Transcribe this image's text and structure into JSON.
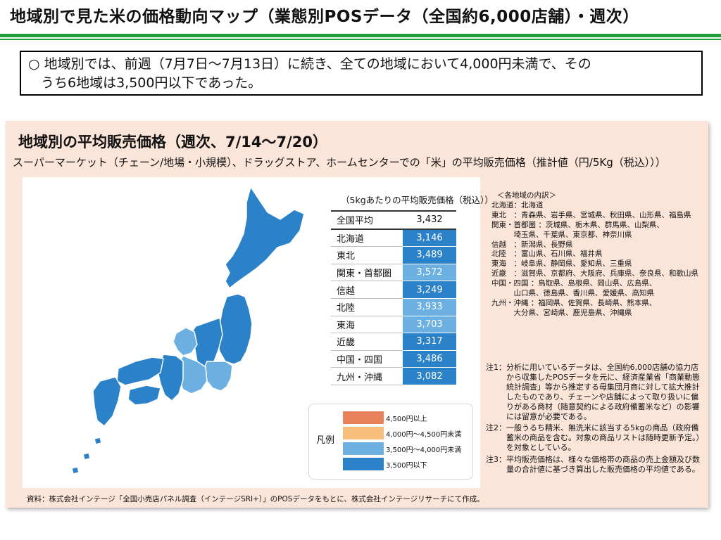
{
  "header": {
    "title": "地域別で見た米の価格動向マップ（業態別POSデータ（全国約6,000店舗）・週次）",
    "accent_color": "#22a038"
  },
  "summary": {
    "line1": "○  地域別では、前週（7月7日～7月13日）に続き、全ての地域において4,000円未満で、その",
    "line2": "うち6地域は3,500円以下であった。"
  },
  "panel": {
    "title": "地域別の平均販売価格（週次、7/14～7/20）",
    "subtitle": "スーパーマーケット（チェーン/地場・小規模）、ドラッグストア、ホームセンターでの「米」の平均販売価格（推計値（円/5Kg（税込）））",
    "unit_note": "（5kgあたりの平均販売価格（税込））",
    "source": "資料：株式会社インテージ「全国小売店パネル調査（インテージSRI+）」のPOSデータをもとに、株式会社インテージリサーチにて作成。",
    "background_color": "#fbe5d9"
  },
  "price_table": {
    "average": {
      "region": "全国平均",
      "price": "3,432"
    },
    "rows": [
      {
        "region": "北海道",
        "price": "3,146",
        "color": "#2b82c8"
      },
      {
        "region": "東北",
        "price": "3,489",
        "color": "#2b82c8"
      },
      {
        "region": "関東・首都圏",
        "price": "3,572",
        "color": "#6bb0e0"
      },
      {
        "region": "信越",
        "price": "3,249",
        "color": "#2b82c8"
      },
      {
        "region": "北陸",
        "price": "3,933",
        "color": "#6bb0e0"
      },
      {
        "region": "東海",
        "price": "3,703",
        "color": "#6bb0e0"
      },
      {
        "region": "近畿",
        "price": "3,317",
        "color": "#2b82c8"
      },
      {
        "region": "中国・四国",
        "price": "3,486",
        "color": "#2b82c8"
      },
      {
        "region": "九州・沖縄",
        "price": "3,082",
        "color": "#2b82c8"
      }
    ]
  },
  "legend": {
    "title": "凡例",
    "items": [
      {
        "label": "4,500円以上",
        "color": "#e8825a"
      },
      {
        "label": "4,000円～4,500円未満",
        "color": "#f6be7a"
      },
      {
        "label": "3,500円～4,000円未満",
        "color": "#6bb0e0"
      },
      {
        "label": "3,500円以下",
        "color": "#2b82c8"
      }
    ]
  },
  "breakdown": {
    "heading": "＜各地域の内訳＞",
    "lines": [
      "北海道：北海道",
      "東北　：青森県、岩手県、宮城県、秋田県、山形県、福島県",
      "関東・首都圏 ：茨城県、栃木県、群馬県、山梨県、",
      "　　　埼玉県、千葉県、東京都、神奈川県",
      "信越　：新潟県、長野県",
      "北陸　：富山県、石川県、福井県",
      "東海　：岐阜県、静岡県、愛知県、三重県",
      "近畿　：滋賀県、京都府、大阪府、兵庫県、奈良県、和歌山県",
      "中国・四国 ：鳥取県、島根県、岡山県、広島県、",
      "　　　山口県、徳島県、香川県、愛媛県、高知県",
      "九州・沖縄 ：福岡県、佐賀県、長崎県、熊本県、",
      "　　　大分県、宮崎県、鹿児島県、沖縄県"
    ]
  },
  "notes": [
    {
      "label": "注1：",
      "text": "分析に用いているデータは、全国約6,000店舗の協力店から収集したPOSデータを元に、経済産業省「商業動態統計調査」等から推定する母集団月商に対して拡大推計したものであり、チェーンや店舗によって取り扱いに偏りがある商材（随意契約による政府備蓄米など）の影響には留意が必要である。"
    },
    {
      "label": "注2：",
      "text": "一般うるち精米、無洗米に該当する5kgの商品（政府備蓄米の商品を含む。対象の商品リストは随時更新予定。）を対象としている。"
    },
    {
      "label": "注3：",
      "text": "平均販売価格は、様々な価格帯の商品の売上金額及び数量の合計値に基づき算出した販売価格の平均値である。"
    }
  ],
  "map": {
    "border_color": "#ffffff",
    "regions": [
      {
        "id": "hokkaido",
        "color": "#2b82c8"
      },
      {
        "id": "tohoku",
        "color": "#2b82c8"
      },
      {
        "id": "kanto",
        "color": "#6bb0e0"
      },
      {
        "id": "shinetsu",
        "color": "#2b82c8"
      },
      {
        "id": "hokuriku",
        "color": "#6bb0e0"
      },
      {
        "id": "tokai",
        "color": "#6bb0e0"
      },
      {
        "id": "kinki",
        "color": "#2b82c8"
      },
      {
        "id": "chugoku-shikoku",
        "color": "#2b82c8"
      },
      {
        "id": "kyushu-okinawa",
        "color": "#2b82c8"
      }
    ]
  }
}
